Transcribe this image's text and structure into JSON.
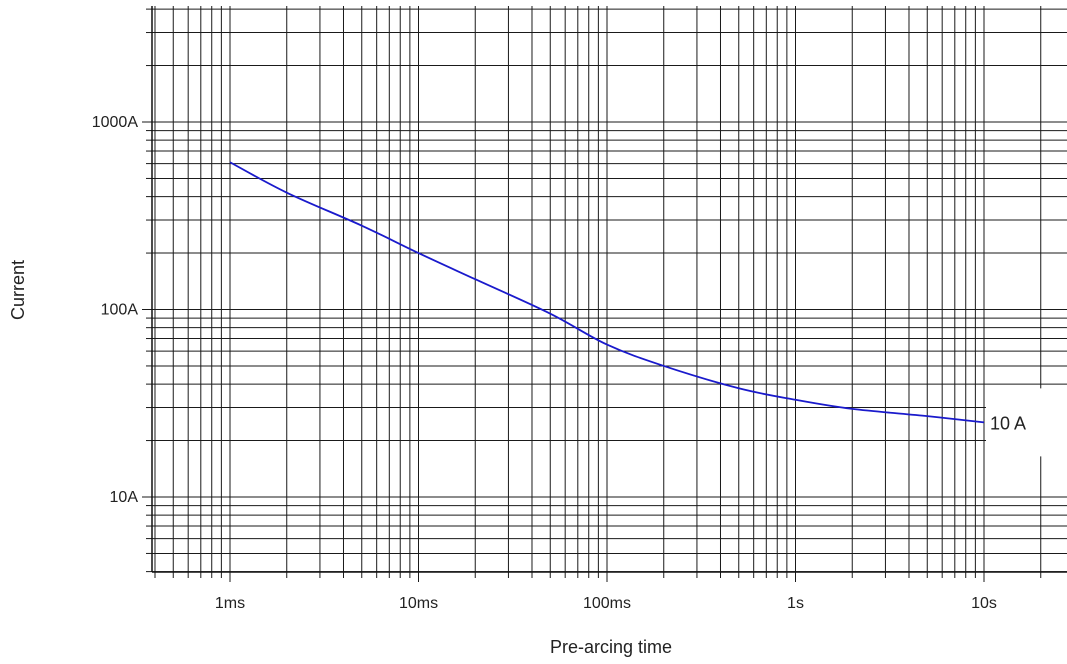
{
  "chart_data": {
    "type": "line",
    "title": "",
    "xlabel": "Pre-arcing time",
    "ylabel": "Current",
    "x_scale": "log",
    "y_scale": "log",
    "xlim_s": [
      0.0004,
      20
    ],
    "ylim_A": [
      4,
      4000
    ],
    "x_ticks": [
      {
        "value": 0.001,
        "label": "1ms"
      },
      {
        "value": 0.01,
        "label": "10ms"
      },
      {
        "value": 0.1,
        "label": "100ms"
      },
      {
        "value": 1,
        "label": "1s"
      },
      {
        "value": 10,
        "label": "10s"
      }
    ],
    "y_ticks": [
      {
        "value": 10,
        "label": "10A"
      },
      {
        "value": 100,
        "label": "100A"
      },
      {
        "value": 1000,
        "label": "1000A"
      }
    ],
    "grid": true,
    "series": [
      {
        "name": "10 A",
        "color": "#1a1acc",
        "points": [
          {
            "x": 0.001,
            "y": 610
          },
          {
            "x": 0.002,
            "y": 420
          },
          {
            "x": 0.005,
            "y": 280
          },
          {
            "x": 0.01,
            "y": 200
          },
          {
            "x": 0.02,
            "y": 145
          },
          {
            "x": 0.05,
            "y": 95
          },
          {
            "x": 0.1,
            "y": 65
          },
          {
            "x": 0.2,
            "y": 50
          },
          {
            "x": 0.5,
            "y": 38
          },
          {
            "x": 1,
            "y": 33
          },
          {
            "x": 2,
            "y": 29.5
          },
          {
            "x": 5,
            "y": 27
          },
          {
            "x": 10,
            "y": 25
          }
        ]
      }
    ]
  }
}
